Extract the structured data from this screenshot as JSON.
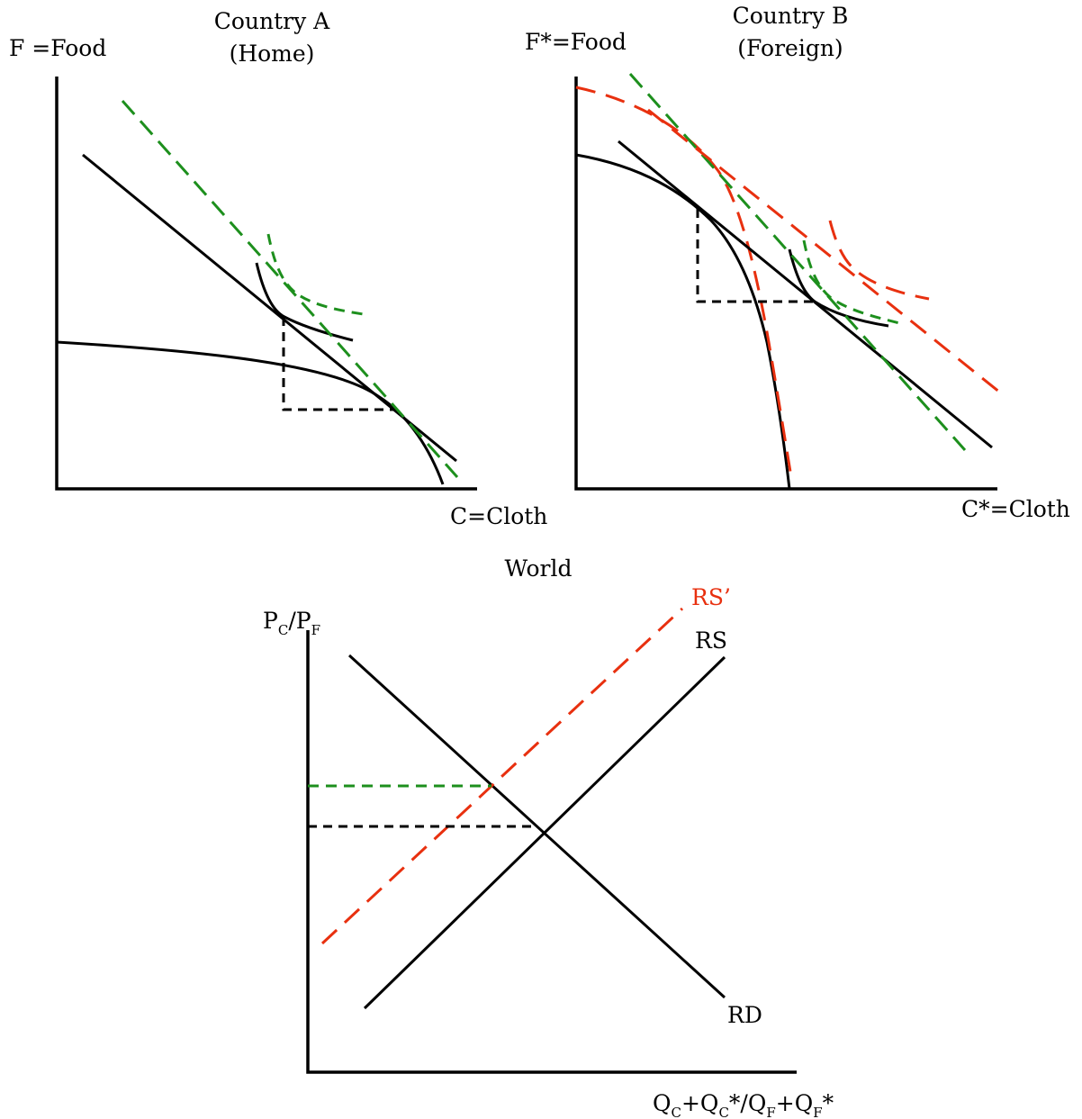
{
  "panel_a": {
    "title_line1": "Country A",
    "title_line2": "(Home)",
    "y_label": "F =Food",
    "x_label": "C=Cloth"
  },
  "panel_b": {
    "title_line1": "Country B",
    "title_line2": "(Foreign)",
    "y_label": "F*=Food",
    "x_label": "C*=Cloth"
  },
  "world": {
    "title": "World",
    "y_label_main": "P",
    "y_label_sub1": "C",
    "y_label_sep": "/P",
    "y_label_sub2": "F",
    "x_label_parts": {
      "q1": "Q",
      "s1": "C",
      "t1": "+Q",
      "s2": "C",
      "t2": "*/Q",
      "s3": "F",
      "t3": "+Q",
      "s4": "F",
      "t4": "*"
    },
    "rs_label": "RS",
    "rs_prime_label": "RS’",
    "rd_label": "RD"
  },
  "colors": {
    "black": "#000000",
    "green": "#1d8f1d",
    "red": "#e8300f"
  }
}
